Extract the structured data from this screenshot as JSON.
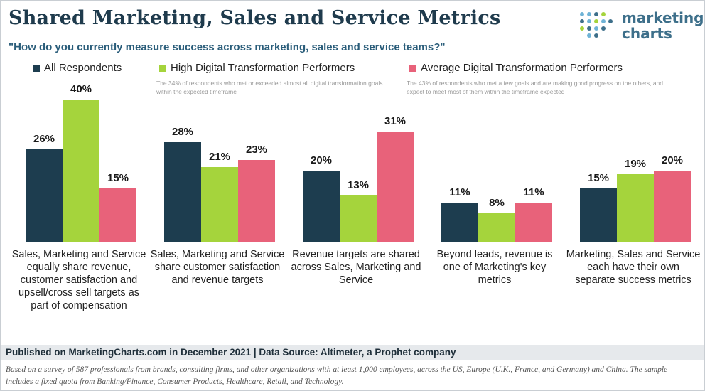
{
  "title": "Shared Marketing, Sales and Service Metrics",
  "subtitle": "\"How do you currently measure success across marketing, sales and service teams?\"",
  "logo": {
    "line1": "marketing",
    "line2": "charts"
  },
  "colors": {
    "all": "#1d3d4f",
    "high": "#a5d43c",
    "avg": "#e8627a",
    "dark_text": "#1f3b4d"
  },
  "legend": {
    "all": {
      "label": "All Respondents"
    },
    "high": {
      "label": "High Digital Transformation Performers",
      "note": "The 34% of respondents who met or exceeded almost all digital transformation goals within the expected timeframe"
    },
    "avg": {
      "label": "Average Digital Transformation Performers",
      "note": "The 43% of respondents who met a few goals and are making good progress on the others, and expect to meet most of them within the timeframe expected"
    }
  },
  "chart_data": {
    "type": "bar",
    "categories": [
      "Sales, Marketing and Service equally share revenue, customer satisfaction and upsell/cross sell targets as part of compensation",
      "Sales, Marketing and Service share customer satisfaction and revenue targets",
      "Revenue targets are shared across Sales, Marketing and Service",
      "Beyond leads, revenue is one of Marketing's key metrics",
      "Marketing, Sales and Service each have their own separate success metrics"
    ],
    "series": [
      {
        "name": "All Respondents",
        "values": [
          26,
          28,
          20,
          11,
          15
        ]
      },
      {
        "name": "High Digital Transformation Performers",
        "values": [
          40,
          21,
          13,
          8,
          19
        ]
      },
      {
        "name": "Average Digital Transformation Performers",
        "values": [
          15,
          23,
          31,
          11,
          20
        ]
      }
    ],
    "value_suffix": "%",
    "ylim": [
      0,
      40
    ],
    "grid": false
  },
  "footer": {
    "source": "Published on MarketingCharts.com in December 2021 | Data Source: Altimeter, a Prophet company",
    "note": "Based on a survey of 587 professionals from brands, consulting firms, and other organizations with at least 1,000 employees, across the US, Europe (U.K., France, and Germany) and China. The sample includes a fixed quota from Banking/Finance, Consumer Products, Healthcare, Retail, and Technology."
  }
}
